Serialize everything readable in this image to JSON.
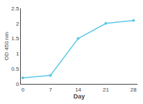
{
  "chart_data": {
    "type": "line",
    "x": [
      0,
      7,
      14,
      21,
      28
    ],
    "values": [
      0.2,
      0.28,
      1.5,
      2.0,
      2.1
    ],
    "xlabel": "Day",
    "ylabel": "OD 450 nm",
    "xlim": [
      -0.5,
      29
    ],
    "ylim": [
      0,
      2.5
    ],
    "xticks": [
      0,
      7,
      14,
      21,
      28
    ],
    "yticks": [
      0,
      0.5,
      1,
      1.5,
      2,
      2.5
    ],
    "color": "#5bc8e8",
    "marker": "circle",
    "grid": false
  }
}
